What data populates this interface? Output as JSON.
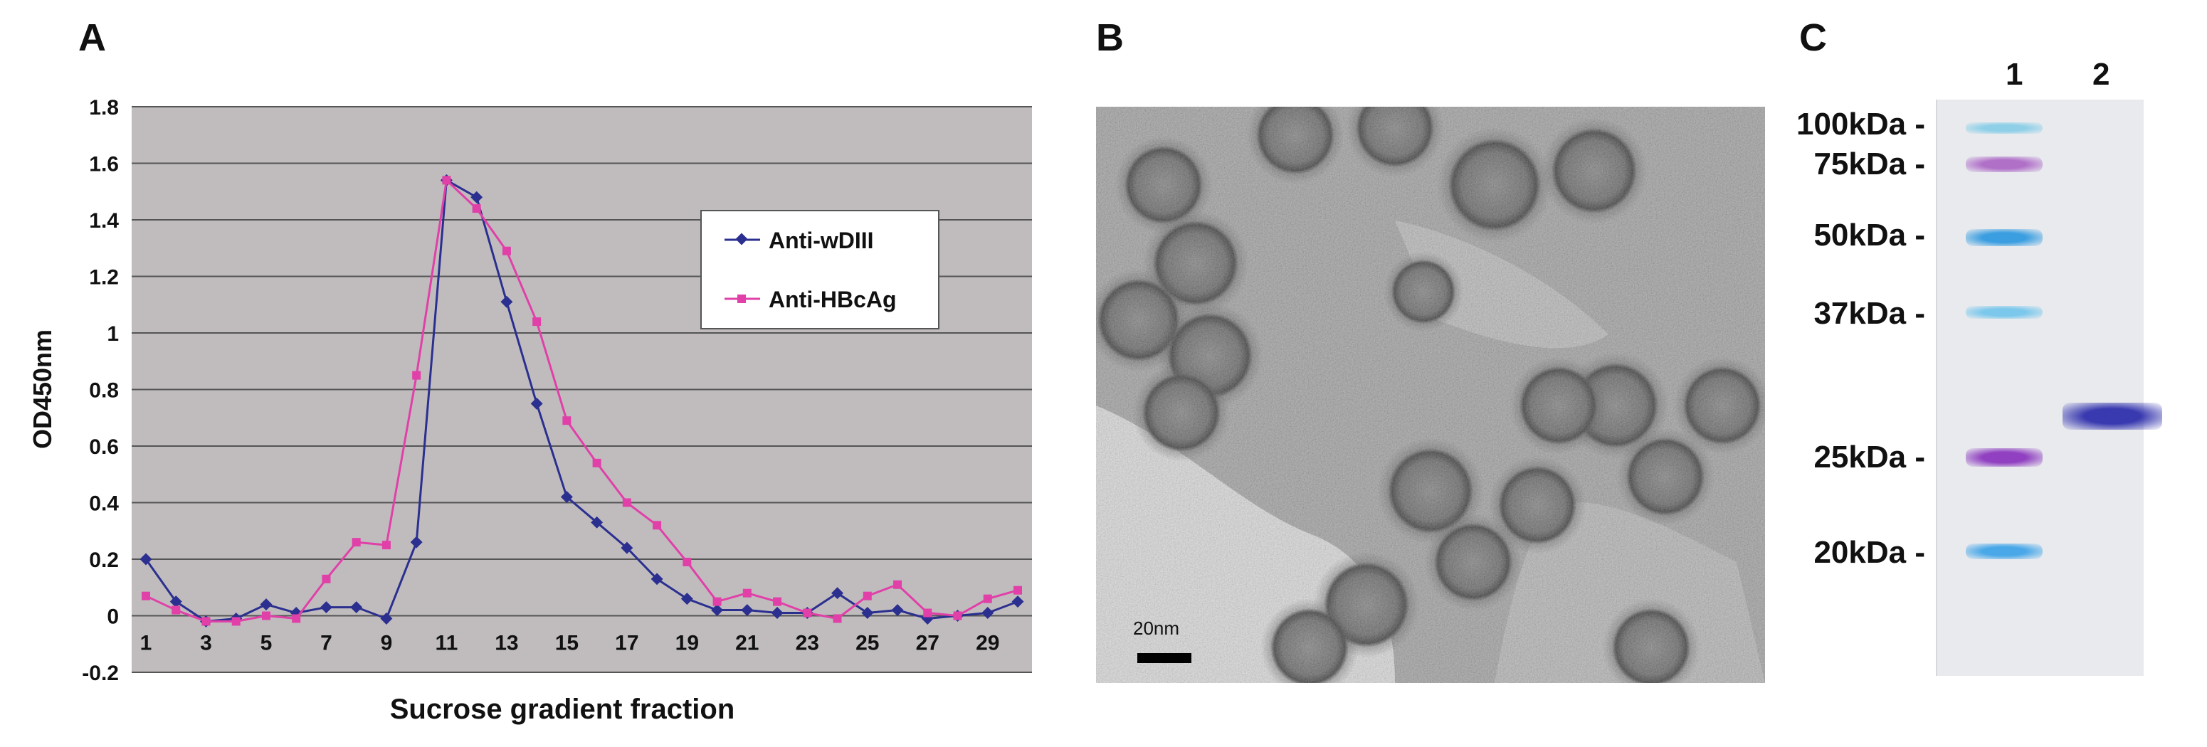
{
  "panels": {
    "a_label": "A",
    "b_label": "B",
    "c_label": "C"
  },
  "chart_data": {
    "type": "line",
    "xlabel": "Sucrose gradient fraction",
    "ylabel": "OD450nm",
    "ylim": [
      -0.2,
      1.8
    ],
    "yticks": [
      -0.2,
      0,
      0.2,
      0.4,
      0.6,
      0.8,
      1,
      1.2,
      1.4,
      1.6,
      1.8
    ],
    "xticks": [
      1,
      3,
      5,
      7,
      9,
      11,
      13,
      15,
      17,
      19,
      21,
      23,
      25,
      27,
      29
    ],
    "x": [
      1,
      2,
      3,
      4,
      5,
      6,
      7,
      8,
      9,
      10,
      11,
      12,
      13,
      14,
      15,
      16,
      17,
      18,
      19,
      20,
      21,
      22,
      23,
      24,
      25,
      26,
      27,
      28,
      29,
      30
    ],
    "grid": true,
    "legend_position": "right",
    "series": [
      {
        "name": "Anti-wDIII",
        "color": "#2b2f8f",
        "marker": "diamond",
        "values": [
          0.2,
          0.05,
          -0.02,
          -0.01,
          0.04,
          0.01,
          0.03,
          0.03,
          -0.01,
          0.26,
          1.54,
          1.48,
          1.11,
          0.75,
          0.42,
          0.33,
          0.24,
          0.13,
          0.06,
          0.02,
          0.02,
          0.01,
          0.01,
          0.08,
          0.01,
          0.02,
          -0.01,
          0.0,
          0.01,
          0.05
        ]
      },
      {
        "name": "Anti-HBcAg",
        "color": "#e040a8",
        "marker": "square",
        "values": [
          0.07,
          0.02,
          -0.02,
          -0.02,
          0.0,
          -0.01,
          0.13,
          0.26,
          0.25,
          0.85,
          1.54,
          1.44,
          1.29,
          1.04,
          0.69,
          0.54,
          0.4,
          0.32,
          0.19,
          0.05,
          0.08,
          0.05,
          0.01,
          -0.01,
          0.07,
          0.11,
          0.01,
          0.0,
          0.06,
          0.09
        ]
      }
    ]
  },
  "micrograph": {
    "scale_label": "20nm"
  },
  "gel": {
    "lanes": [
      "1",
      "2"
    ],
    "markers": [
      {
        "label": "100kDa -",
        "color": "#8fd0e8"
      },
      {
        "label": "75kDa -",
        "color": "#b070c8"
      },
      {
        "label": "50kDa -",
        "color": "#3a9ee0"
      },
      {
        "label": "37kDa -",
        "color": "#7cc8ec"
      },
      {
        "label": "25kDa -",
        "color": "#9040c0"
      },
      {
        "label": "20kDa -",
        "color": "#4aa8e8"
      }
    ],
    "sample_band_color": "#3a3ab0"
  }
}
